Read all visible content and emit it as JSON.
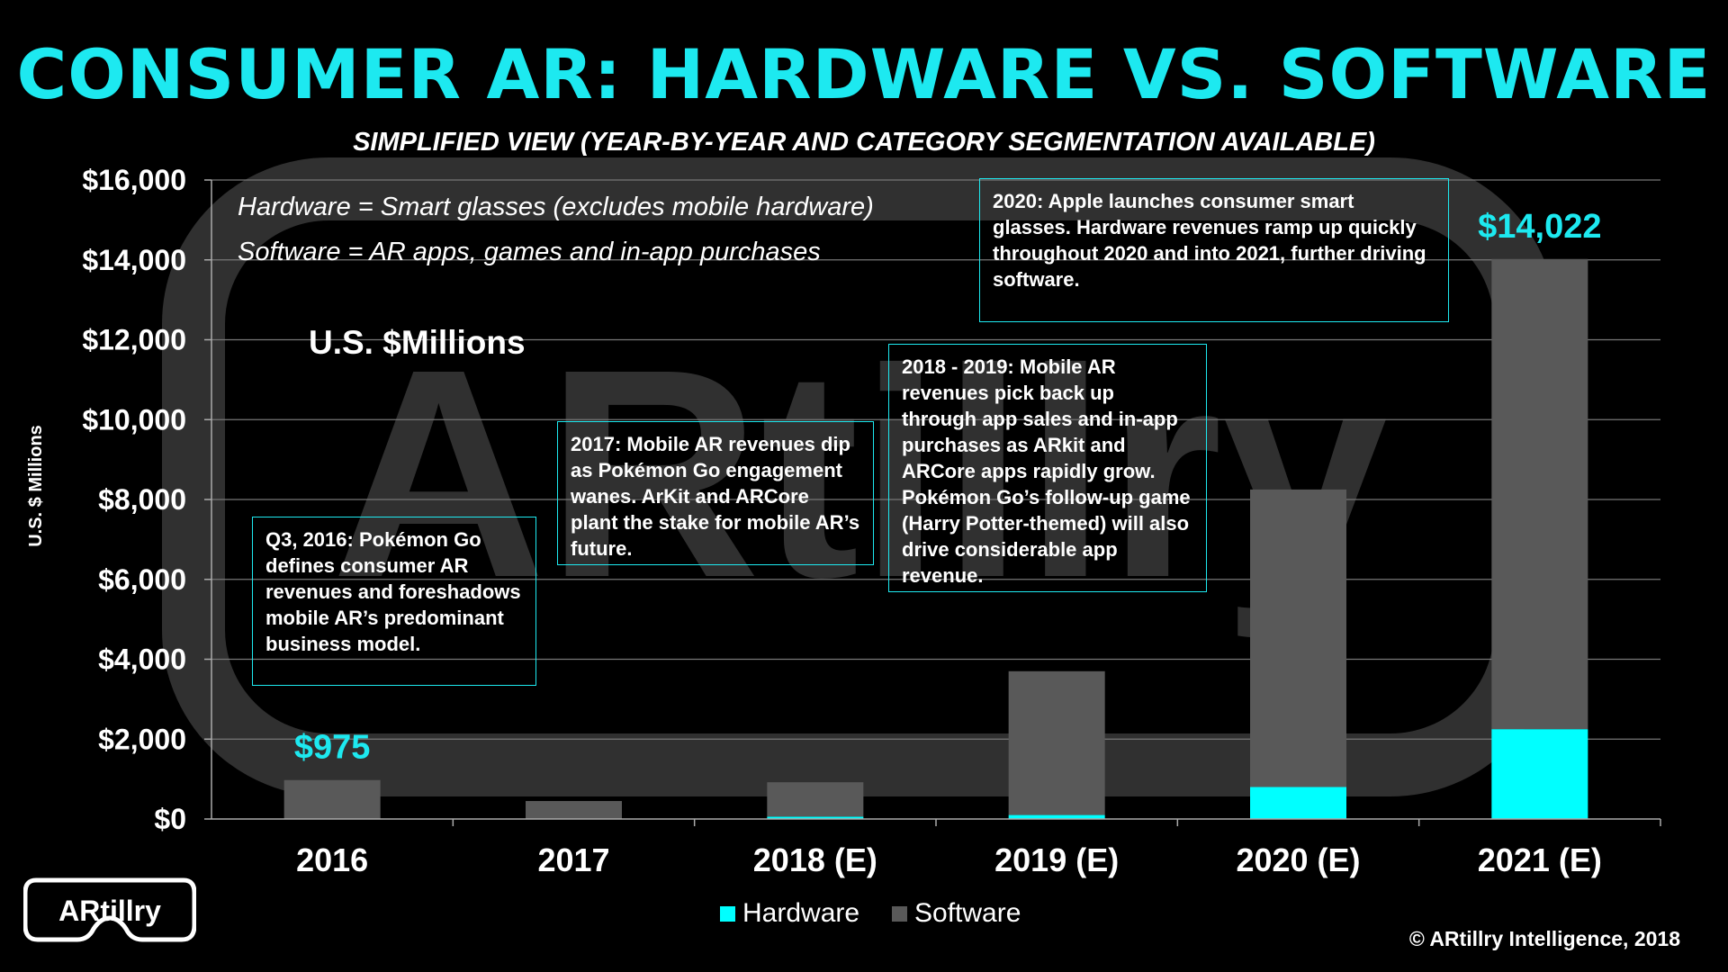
{
  "title": "CONSUMER AR: HARDWARE VS. SOFTWARE",
  "subtitle": "SIMPLIFIED VIEW (YEAR-BY-YEAR AND CATEGORY SEGMENTATION AVAILABLE)",
  "notes": [
    "Hardware = Smart glasses (excludes mobile hardware)",
    "Software = AR apps, games and in-app purchases"
  ],
  "unit_label": "U.S. $Millions",
  "callouts": [
    "Q3, 2016: Pokémon Go defines consumer AR revenues and foreshadows mobile AR’s predominant business model.",
    "2017: Mobile AR revenues dip as Pokémon Go engagement wanes. ArKit and ARCore plant the stake for mobile AR’s future.",
    "2018 - 2019: Mobile AR revenues pick back up through app sales and in-app purchases as ARkit and ARCore apps rapidly grow. Pokémon Go’s follow-up game (Harry Potter-themed) will also drive considerable app revenue.",
    "2020: Apple launches consumer smart glasses. Hardware revenues ramp up quickly throughout 2020 and into 2021, further driving software."
  ],
  "copyright": "© ARtillry Intelligence, 2018",
  "logo_text": "ARtillry",
  "colors": {
    "accent": "#1de9f0",
    "hardware": "#00ffff",
    "software": "#595959",
    "background": "#000000"
  },
  "chart_data": {
    "type": "bar",
    "stacked": true,
    "categories": [
      "2016",
      "2017",
      "2018 (E)",
      "2019 (E)",
      "2020 (E)",
      "2021 (E)"
    ],
    "series": [
      {
        "name": "Hardware",
        "values": [
          0,
          0,
          60,
          100,
          800,
          2250
        ]
      },
      {
        "name": "Software",
        "values": [
          975,
          450,
          860,
          3600,
          7450,
          11772
        ]
      }
    ],
    "ylabel": "U.S. $ Millions",
    "ylim": [
      0,
      16000
    ],
    "yticks": [
      "$0",
      "$2,000",
      "$4,000",
      "$6,000",
      "$8,000",
      "$10,000",
      "$12,000",
      "$14,000",
      "$16,000"
    ],
    "grid": true,
    "legend": "bottom-center",
    "annotations": [
      {
        "category": "2016",
        "text": "$975"
      },
      {
        "category": "2021 (E)",
        "text": "$14,022"
      }
    ]
  }
}
